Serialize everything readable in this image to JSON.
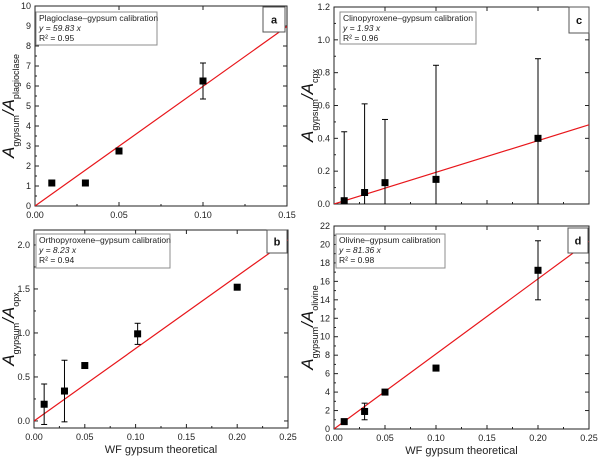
{
  "colors": {
    "fit_line": "#e8161b",
    "marker": "#000000",
    "axis": "#222222",
    "legend_border": "#8c8c8c"
  },
  "chart_data": [
    {
      "panel": "a",
      "type": "scatter",
      "title": "Plagioclase–gypsum calibration",
      "equation": "y = 59.83 x",
      "r2_label": "R² = 0.95",
      "ylabel_parts": [
        "A",
        "gypsum",
        "/A",
        "plagioclase"
      ],
      "xlabel": "",
      "xlim": [
        0,
        0.15
      ],
      "ylim": [
        0,
        10
      ],
      "xticks": [
        0,
        0.05,
        0.1,
        0.15
      ],
      "xtick_labels": [
        "0.00",
        "0.05",
        "0.10",
        "0.15"
      ],
      "yticks": [
        0,
        1,
        2,
        3,
        4,
        5,
        6,
        7,
        8,
        9,
        10
      ],
      "ytick_labels": [
        "0",
        "1",
        "2",
        "3",
        "4",
        "5",
        "6",
        "7",
        "8",
        "9",
        "10"
      ],
      "fit_slope": 59.83,
      "points": [
        {
          "x": 0.01,
          "y": 1.15,
          "yerr": 0
        },
        {
          "x": 0.03,
          "y": 1.15,
          "yerr": 0
        },
        {
          "x": 0.05,
          "y": 2.75,
          "yerr": 0
        },
        {
          "x": 0.1,
          "y": 6.25,
          "yerr": 0.9
        }
      ]
    },
    {
      "panel": "c",
      "type": "scatter",
      "title": "Clinopyroxene–gypsum calibration",
      "equation": "y = 1.93 x",
      "r2_label": "R² = 0.96",
      "ylabel_parts": [
        "A",
        "gypsum",
        "/A",
        "cpx"
      ],
      "xlabel": "",
      "xlim": [
        0,
        0.25
      ],
      "ylim": [
        0,
        1.2
      ],
      "xticks": [
        0,
        0.05,
        0.1,
        0.15,
        0.2,
        0.25
      ],
      "xtick_labels": [],
      "yticks": [
        0,
        0.2,
        0.4,
        0.6,
        0.8,
        1.0,
        1.2
      ],
      "ytick_labels": [
        "0.0",
        "0.2",
        "0.4",
        "0.6",
        "0.8",
        "1.0",
        "1.2"
      ],
      "fit_slope": 1.93,
      "points": [
        {
          "x": 0.01,
          "y": 0.02,
          "yerr": 0.42
        },
        {
          "x": 0.03,
          "y": 0.07,
          "yerr": 0.54
        },
        {
          "x": 0.05,
          "y": 0.13,
          "yerr": 0.385
        },
        {
          "x": 0.1,
          "y": 0.15,
          "yerr": 0.695
        },
        {
          "x": 0.2,
          "y": 0.4,
          "yerr": 0.485
        }
      ]
    },
    {
      "panel": "b",
      "type": "scatter",
      "title": "Orthopyroxene–gypsum calibration",
      "equation": "y = 8.23 x",
      "r2_label": "R² = 0.94",
      "ylabel_parts": [
        "A",
        "gypsum",
        "/A",
        "opx"
      ],
      "xlabel": "WF gypsum theoretical",
      "xlim": [
        0,
        0.25
      ],
      "ylim": [
        -0.08,
        2.17
      ],
      "xticks": [
        0,
        0.05,
        0.1,
        0.15,
        0.2,
        0.25
      ],
      "xtick_labels": [
        "0.00",
        "0.05",
        "0.10",
        "0.15",
        "0.20",
        "0.25"
      ],
      "yticks": [
        0,
        0.5,
        1.0,
        1.5,
        2.0
      ],
      "ytick_labels": [
        "0.0",
        "0.5",
        "1.0",
        "1.5",
        "2.0"
      ],
      "fit_slope": 8.23,
      "points": [
        {
          "x": 0.01,
          "y": 0.19,
          "yerr": 0.23
        },
        {
          "x": 0.03,
          "y": 0.34,
          "yerr": 0.35
        },
        {
          "x": 0.05,
          "y": 0.63,
          "yerr": 0
        },
        {
          "x": 0.102,
          "y": 0.99,
          "yerr": 0.12
        },
        {
          "x": 0.2,
          "y": 1.52,
          "yerr": 0
        }
      ]
    },
    {
      "panel": "d",
      "type": "scatter",
      "title": "Olivine–gypsum calibration",
      "equation": "y = 81.36 x",
      "r2_label": "R² = 0.98",
      "ylabel_parts": [
        "A",
        "gypsum",
        "/A",
        "olivine"
      ],
      "xlabel": "WF gypsum theoretical",
      "xlim": [
        0,
        0.25
      ],
      "ylim": [
        0,
        22
      ],
      "xticks": [
        0,
        0.05,
        0.1,
        0.15,
        0.2,
        0.25
      ],
      "xtick_labels": [
        "0.00",
        "0.05",
        "0.10",
        "0.15",
        "0.20",
        "0.25"
      ],
      "yticks": [
        0,
        2,
        4,
        6,
        8,
        10,
        12,
        14,
        16,
        18,
        20,
        22
      ],
      "ytick_labels": [
        "0",
        "2",
        "4",
        "6",
        "8",
        "10",
        "12",
        "14",
        "16",
        "18",
        "20",
        "22"
      ],
      "fit_slope": 81.36,
      "points": [
        {
          "x": 0.01,
          "y": 0.8,
          "yerr": 0
        },
        {
          "x": 0.03,
          "y": 1.9,
          "yerr": 0.9
        },
        {
          "x": 0.05,
          "y": 4.0,
          "yerr": 0
        },
        {
          "x": 0.1,
          "y": 6.6,
          "yerr": 0.3
        },
        {
          "x": 0.2,
          "y": 17.2,
          "yerr": 3.2
        }
      ]
    }
  ]
}
